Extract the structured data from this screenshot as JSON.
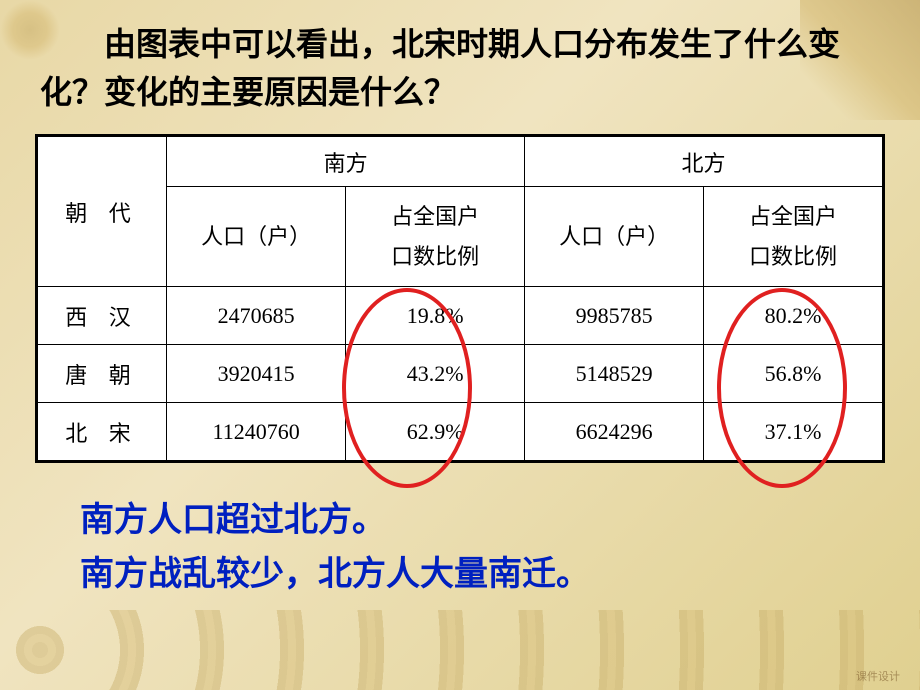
{
  "question": "由图表中可以看出，北宋时期人口分布发生了什么变化？变化的主要原因是什么？",
  "table": {
    "col_dynasty": "朝 代",
    "region_south": "南方",
    "region_north": "北方",
    "sub_population": "人口（户）",
    "sub_ratio_line1": "占全国户",
    "sub_ratio_line2": "口数比例",
    "rows": [
      {
        "dynasty": "西 汉",
        "south_pop": "2470685",
        "south_pct": "19.8%",
        "north_pop": "9985785",
        "north_pct": "80.2%"
      },
      {
        "dynasty": "唐 朝",
        "south_pop": "3920415",
        "south_pct": "43.2%",
        "north_pop": "5148529",
        "north_pct": "56.8%"
      },
      {
        "dynasty": "北 宋",
        "south_pop": "11240760",
        "south_pct": "62.9%",
        "north_pop": "6624296",
        "north_pct": "37.1%"
      }
    ]
  },
  "answer": {
    "line1": "南方人口超过北方。",
    "line2": "南方战乱较少，北方人大量南迁。"
  },
  "ellipse_color": "#e02020",
  "answer_color": "#0020c0",
  "watermark": "课件设计",
  "colors": {
    "background_start": "#e8d8a6",
    "background_end": "#e0d090",
    "table_bg": "#ffffff",
    "border": "#000000",
    "text": "#000000"
  }
}
